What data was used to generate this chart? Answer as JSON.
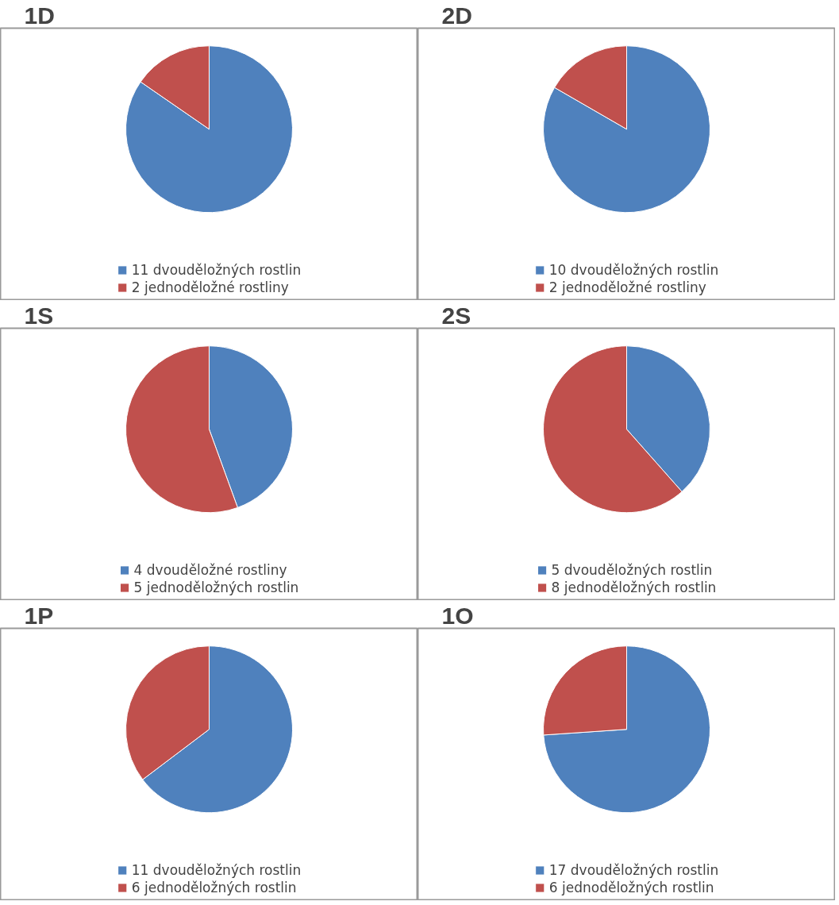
{
  "chart_data": [
    {
      "type": "pie",
      "title": "1D",
      "categories": [
        "11 dvouděložných rostlin",
        "2 jednoděložné rostliny"
      ],
      "values": [
        11,
        2
      ],
      "colors": [
        "#4f81bd",
        "#c0504d"
      ],
      "legend": "bottom"
    },
    {
      "type": "pie",
      "title": "2D",
      "categories": [
        "10 dvouděložných rostlin",
        "2 jednoděložné rostliny"
      ],
      "values": [
        10,
        2
      ],
      "colors": [
        "#4f81bd",
        "#c0504d"
      ],
      "legend": "bottom"
    },
    {
      "type": "pie",
      "title": "1S",
      "categories": [
        "4 dvouděložné rostliny",
        "5 jednoděložných rostlin"
      ],
      "values": [
        4,
        5
      ],
      "colors": [
        "#4f81bd",
        "#c0504d"
      ],
      "legend": "bottom"
    },
    {
      "type": "pie",
      "title": "2S",
      "categories": [
        "5 dvouděložných rostlin",
        "8 jednoděložných rostlin"
      ],
      "values": [
        5,
        8
      ],
      "colors": [
        "#4f81bd",
        "#c0504d"
      ],
      "legend": "bottom"
    },
    {
      "type": "pie",
      "title": "1P",
      "categories": [
        "11 dvouděložných rostlin",
        "6 jednoděložných rostlin"
      ],
      "values": [
        11,
        6
      ],
      "colors": [
        "#4f81bd",
        "#c0504d"
      ],
      "legend": "bottom"
    },
    {
      "type": "pie",
      "title": "1O",
      "categories": [
        "17 dvouděložných rostlin",
        "6 jednoděložných rostlin"
      ],
      "values": [
        17,
        6
      ],
      "colors": [
        "#4f81bd",
        "#c0504d"
      ],
      "legend": "bottom"
    }
  ]
}
